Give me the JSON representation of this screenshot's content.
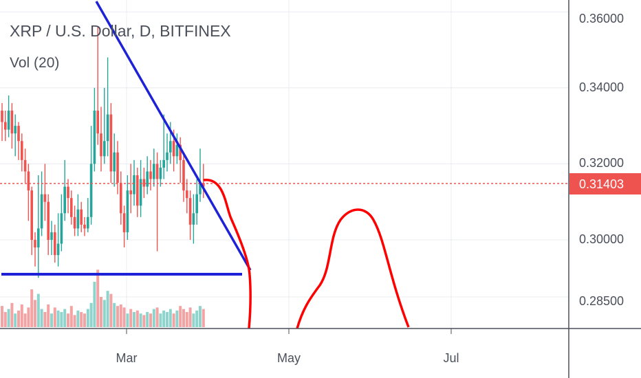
{
  "chart_data": {
    "type": "candlestick",
    "title": "XRP / U.S. Dollar, D, BITFINEX",
    "volume_label": "Vol (20)",
    "x_ticks": [
      "Mar",
      "May",
      "Jul"
    ],
    "y_ticks": [
      "0.36000",
      "0.34000",
      "0.32000",
      "0.30000",
      "0.28500"
    ],
    "last_price": "0.31403",
    "colors": {
      "up": "#26a69a",
      "down": "#ef5350",
      "drawing_red": "#ff0000",
      "drawing_blue": "#1e22d6",
      "price_line": "#ef5350"
    },
    "candles": [
      [
        0.334,
        0.331,
        0.336,
        0.326
      ],
      [
        0.331,
        0.329,
        0.334,
        0.326
      ],
      [
        0.329,
        0.334,
        0.338,
        0.327
      ],
      [
        0.334,
        0.328,
        0.336,
        0.324
      ],
      [
        0.328,
        0.33,
        0.333,
        0.322
      ],
      [
        0.33,
        0.326,
        0.331,
        0.321
      ],
      [
        0.326,
        0.321,
        0.328,
        0.318
      ],
      [
        0.321,
        0.318,
        0.324,
        0.315
      ],
      [
        0.318,
        0.313,
        0.32,
        0.305
      ],
      [
        0.313,
        0.3,
        0.314,
        0.296
      ],
      [
        0.3,
        0.298,
        0.302,
        0.293
      ],
      [
        0.298,
        0.303,
        0.317,
        0.29
      ],
      [
        0.303,
        0.312,
        0.318,
        0.301
      ],
      [
        0.312,
        0.31,
        0.32,
        0.305
      ],
      [
        0.31,
        0.3,
        0.312,
        0.296
      ],
      [
        0.3,
        0.302,
        0.305,
        0.296
      ],
      [
        0.302,
        0.296,
        0.304,
        0.294
      ],
      [
        0.296,
        0.299,
        0.307,
        0.293
      ],
      [
        0.299,
        0.307,
        0.312,
        0.297
      ],
      [
        0.307,
        0.314,
        0.321,
        0.305
      ],
      [
        0.314,
        0.311,
        0.316,
        0.307
      ],
      [
        0.311,
        0.306,
        0.313,
        0.304
      ],
      [
        0.306,
        0.303,
        0.309,
        0.301
      ],
      [
        0.303,
        0.308,
        0.312,
        0.301
      ],
      [
        0.308,
        0.304,
        0.31,
        0.302
      ],
      [
        0.304,
        0.303,
        0.306,
        0.301
      ],
      [
        0.303,
        0.306,
        0.311,
        0.302
      ],
      [
        0.306,
        0.32,
        0.33,
        0.304
      ],
      [
        0.32,
        0.334,
        0.34,
        0.318
      ],
      [
        0.334,
        0.328,
        0.356,
        0.325
      ],
      [
        0.328,
        0.322,
        0.335,
        0.318
      ],
      [
        0.322,
        0.326,
        0.34,
        0.32
      ],
      [
        0.326,
        0.333,
        0.348,
        0.322
      ],
      [
        0.333,
        0.318,
        0.336,
        0.315
      ],
      [
        0.318,
        0.323,
        0.328,
        0.314
      ],
      [
        0.323,
        0.315,
        0.326,
        0.312
      ],
      [
        0.315,
        0.307,
        0.318,
        0.304
      ],
      [
        0.307,
        0.302,
        0.309,
        0.298
      ],
      [
        0.302,
        0.313,
        0.317,
        0.3
      ],
      [
        0.313,
        0.312,
        0.32,
        0.307
      ],
      [
        0.312,
        0.317,
        0.321,
        0.309
      ],
      [
        0.317,
        0.309,
        0.319,
        0.306
      ],
      [
        0.309,
        0.316,
        0.321,
        0.306
      ],
      [
        0.316,
        0.314,
        0.319,
        0.311
      ],
      [
        0.314,
        0.318,
        0.322,
        0.312
      ],
      [
        0.318,
        0.316,
        0.321,
        0.313
      ],
      [
        0.316,
        0.32,
        0.324,
        0.314
      ],
      [
        0.32,
        0.316,
        0.323,
        0.297
      ],
      [
        0.316,
        0.319,
        0.321,
        0.314
      ],
      [
        0.319,
        0.321,
        0.333,
        0.316
      ],
      [
        0.321,
        0.323,
        0.328,
        0.318
      ],
      [
        0.323,
        0.326,
        0.331,
        0.32
      ],
      [
        0.326,
        0.322,
        0.329,
        0.318
      ],
      [
        0.322,
        0.325,
        0.328,
        0.32
      ],
      [
        0.325,
        0.321,
        0.327,
        0.315
      ],
      [
        0.321,
        0.313,
        0.323,
        0.31
      ],
      [
        0.313,
        0.311,
        0.316,
        0.307
      ],
      [
        0.311,
        0.304,
        0.313,
        0.3
      ],
      [
        0.304,
        0.307,
        0.312,
        0.299
      ],
      [
        0.307,
        0.312,
        0.316,
        0.304
      ],
      [
        0.312,
        0.315,
        0.324,
        0.31
      ],
      [
        0.315,
        0.314,
        0.32,
        0.311
      ]
    ],
    "volumes": [
      14,
      10,
      12,
      16,
      9,
      11,
      15,
      9,
      13,
      25,
      18,
      22,
      12,
      10,
      15,
      9,
      13,
      11,
      10,
      12,
      9,
      14,
      8,
      11,
      10,
      9,
      12,
      16,
      30,
      38,
      20,
      18,
      24,
      22,
      16,
      14,
      15,
      13,
      9,
      12,
      10,
      11,
      9,
      8,
      10,
      9,
      12,
      13,
      9,
      11,
      10,
      12,
      9,
      11,
      14,
      12,
      10,
      13,
      9,
      11,
      14,
      12
    ]
  }
}
